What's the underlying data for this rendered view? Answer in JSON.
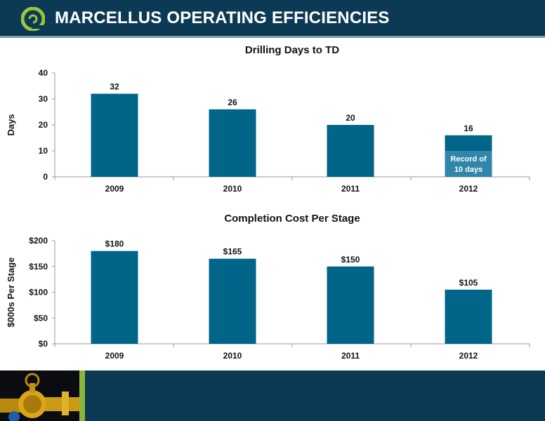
{
  "header": {
    "title": "MARCELLUS OPERATING EFFICIENCIES"
  },
  "colors": {
    "header_bg": "#0c3a55",
    "bar": "#006589",
    "bar_highlight": "#2f86a8",
    "accent": "#8ab63a"
  },
  "icons": {
    "logo": "company-logo-icon",
    "footer_image": "valve-photo-icon"
  },
  "chart_data": [
    {
      "type": "bar",
      "title": "Drilling Days to TD",
      "ylabel": "Days",
      "xlabel": "",
      "categories": [
        "2009",
        "2010",
        "2011",
        "2012"
      ],
      "values": [
        32,
        26,
        20,
        16
      ],
      "data_labels": [
        "32",
        "26",
        "20",
        "16"
      ],
      "ylim": [
        0,
        40
      ],
      "yticks": [
        0,
        10,
        20,
        30,
        40
      ],
      "ytick_labels": [
        "0",
        "10",
        "20",
        "30",
        "40"
      ],
      "annotation": {
        "category": "2012",
        "value": 10,
        "text_line1": "Record of",
        "text_line2": "10 days"
      },
      "grid": false,
      "legend": "none"
    },
    {
      "type": "bar",
      "title": "Completion Cost Per Stage",
      "ylabel": "$000s Per Stage",
      "xlabel": "",
      "categories": [
        "2009",
        "2010",
        "2011",
        "2012"
      ],
      "values": [
        180,
        165,
        150,
        105
      ],
      "data_labels": [
        "$180",
        "$165",
        "$150",
        "$105"
      ],
      "ylim": [
        0,
        200
      ],
      "yticks": [
        0,
        50,
        100,
        150,
        200
      ],
      "ytick_labels": [
        "$0",
        "$50",
        "$100",
        "$150",
        "$200"
      ],
      "grid": false,
      "legend": "none"
    }
  ]
}
